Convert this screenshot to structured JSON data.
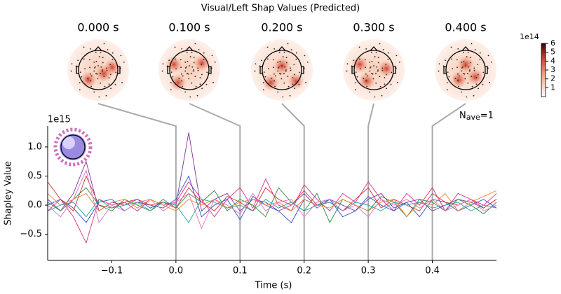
{
  "chart_data": {
    "type": "line",
    "title": "Visual/Left Shap Values (Predicted)",
    "x_label": "Time (s)",
    "y_label": "Shapley Value",
    "y_offset": "1e15",
    "annotation": {
      "main": "N",
      "sub": "ave",
      "rest": "=1"
    },
    "xlim": [
      -0.2,
      0.5
    ],
    "ylim": [
      -0.95,
      1.36
    ],
    "xticks": [
      {
        "value": -0.1,
        "label": "−0.1"
      },
      {
        "value": 0,
        "label": "0.0"
      },
      {
        "value": 0.1,
        "label": "0.1"
      },
      {
        "value": 0.2,
        "label": "0.2"
      },
      {
        "value": 0.3,
        "label": "0.3"
      },
      {
        "value": 0.4,
        "label": "0.4"
      }
    ],
    "yticks": [
      {
        "value": -0.5,
        "label": "−0.5"
      },
      {
        "value": 0,
        "label": "0.0"
      },
      {
        "value": 0.5,
        "label": "0.5"
      },
      {
        "value": 1,
        "label": "1.0"
      }
    ],
    "topomap_times": [
      {
        "value": 0,
        "label": "0.000 s"
      },
      {
        "value": 0.1,
        "label": "0.100 s"
      },
      {
        "value": 0.2,
        "label": "0.200 s"
      },
      {
        "value": 0.3,
        "label": "0.300 s"
      },
      {
        "value": 0.4,
        "label": "0.400 s"
      }
    ],
    "colorbar": {
      "lim": [
        0,
        6
      ],
      "ticks": [
        1,
        2,
        3,
        4,
        5,
        6
      ],
      "offset": "1e14"
    },
    "x": [
      -0.2,
      -0.18,
      -0.16,
      -0.14,
      -0.12,
      -0.1,
      -0.08,
      -0.06,
      -0.04,
      -0.02,
      0,
      0.02,
      0.04,
      0.06,
      0.08,
      0.1,
      0.12,
      0.14,
      0.16,
      0.18,
      0.2,
      0.22,
      0.24,
      0.26,
      0.28,
      0.3,
      0.32,
      0.34,
      0.36,
      0.38,
      0.4,
      0.42,
      0.44,
      0.46,
      0.48,
      0.5
    ],
    "series": [
      {
        "color": "#7b3294",
        "values": [
          0.1,
          -0.1,
          0.2,
          0.75,
          -0.1,
          0.05,
          0,
          0.1,
          -0.05,
          0.05,
          0,
          1.25,
          -0.1,
          0.1,
          0.2,
          -0.1,
          0.1,
          0.05,
          -0.1,
          0,
          0.2,
          -0.05,
          0.1,
          0,
          -0.1,
          0.1,
          0.2,
          -0.05,
          0.05,
          0.1,
          -0.1,
          0,
          0.1,
          0.05,
          -0.05,
          0.1
        ]
      },
      {
        "color": "#d62d8a",
        "values": [
          -0.1,
          0.1,
          -0.2,
          -0.65,
          0.1,
          0,
          0.05,
          -0.1,
          0.1,
          0,
          0.05,
          0.4,
          0.1,
          -0.2,
          0.1,
          0.3,
          -0.05,
          0.45,
          0,
          -0.1,
          0.35,
          0.1,
          -0.1,
          0.2,
          0.05,
          0.4,
          0.1,
          -0.1,
          0.2,
          0,
          0.3,
          -0.1,
          0.2,
          0.1,
          0,
          0.2
        ]
      },
      {
        "color": "#2a8a3a",
        "values": [
          0.05,
          -0.1,
          0.1,
          0.3,
          0,
          -0.1,
          0.1,
          0,
          -0.1,
          0.1,
          -0.05,
          0.2,
          0.05,
          0.25,
          -0.1,
          0.1,
          0,
          -0.2,
          0.3,
          0.05,
          -0.1,
          0.2,
          -0.3,
          0.1,
          0,
          -0.1,
          0.15,
          0.05,
          -0.2,
          0.1,
          0.05,
          -0.1,
          0.1,
          0,
          -0.15,
          0.05
        ]
      },
      {
        "color": "#3050c8",
        "values": [
          0,
          0.1,
          -0.05,
          -0.3,
          0.05,
          0.1,
          -0.1,
          0.05,
          0,
          -0.05,
          0.1,
          0.5,
          -0.2,
          0,
          0.1,
          -0.25,
          0.15,
          0,
          -0.1,
          -0.3,
          0.1,
          0,
          0.1,
          -0.2,
          -0.1,
          0.15,
          0,
          -0.1,
          0.05,
          -0.2,
          0.1,
          0.05,
          -0.1,
          0,
          0.1,
          -0.05
        ]
      },
      {
        "color": "#f08020",
        "values": [
          0.2,
          0,
          0.1,
          0.2,
          -0.1,
          0.05,
          0.1,
          -0.05,
          0.1,
          0,
          -0.1,
          0.1,
          0,
          0.1,
          -0.05,
          0.05,
          0.1,
          0,
          0.05,
          -0.1,
          0.1,
          0,
          -0.05,
          0.1,
          0,
          -0.1,
          0.05,
          0.1,
          -0.2,
          0.05,
          0,
          0.2,
          -0.1,
          0.05,
          0.15,
          0.25
        ]
      },
      {
        "color": "#d03030",
        "values": [
          0.4,
          0.1,
          -0.1,
          0.5,
          0,
          -0.05,
          0.05,
          0.1,
          0,
          0.05,
          -0.05,
          0.3,
          0.05,
          -0.1,
          0.15,
          0.05,
          -0.1,
          0.3,
          0.1,
          0,
          0.25,
          0,
          0.05,
          -0.1,
          0.1,
          0.3,
          -0.05,
          0.1,
          0,
          -0.1,
          0.2,
          0.05,
          0,
          0.1,
          -0.05,
          0.1
        ]
      },
      {
        "color": "#20a0a0",
        "values": [
          -0.1,
          0,
          0.05,
          -0.2,
          0.1,
          -0.05,
          0,
          0.05,
          -0.1,
          0.05,
          0,
          -0.3,
          0.1,
          0.05,
          -0.05,
          0,
          -0.1,
          0.1,
          -0.05,
          0.05,
          -0.1,
          0,
          0.05,
          -0.1,
          0.05,
          0,
          -0.1,
          0.05,
          0,
          0.05,
          -0.05,
          0,
          0.05,
          -0.1,
          0,
          -0.05
        ]
      },
      {
        "color": "#e070c0",
        "values": [
          0,
          -0.2,
          0.1,
          0.6,
          -0.3,
          0,
          -0.1,
          0.05,
          0.1,
          -0.1,
          0.05,
          0.2,
          -0.4,
          0.1,
          0,
          -0.15,
          0.2,
          -0.1,
          0.05,
          0.1,
          -0.2,
          0.05,
          0.1,
          -0.1,
          0,
          -0.2,
          0.1,
          0,
          0.1,
          -0.05,
          0.1,
          -0.1,
          0,
          0.1,
          -0.1,
          0
        ]
      }
    ]
  }
}
